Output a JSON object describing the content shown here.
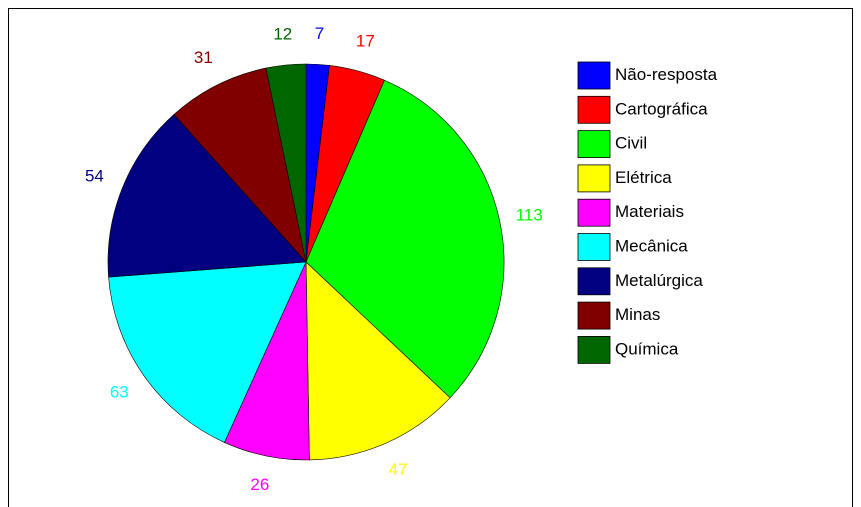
{
  "chart_data": {
    "type": "pie",
    "categories": [
      "Não-resposta",
      "Cartográfica",
      "Civil",
      "Elétrica",
      "Materiais",
      "Mecânica",
      "Metalúrgica",
      "Minas",
      "Química"
    ],
    "values": [
      7,
      17,
      113,
      47,
      26,
      63,
      54,
      31,
      12
    ],
    "colors": [
      "#0000ff",
      "#ff0000",
      "#00ff00",
      "#ffff00",
      "#ff00ff",
      "#00ffff",
      "#000080",
      "#800000",
      "#006600"
    ],
    "legend": "right"
  }
}
